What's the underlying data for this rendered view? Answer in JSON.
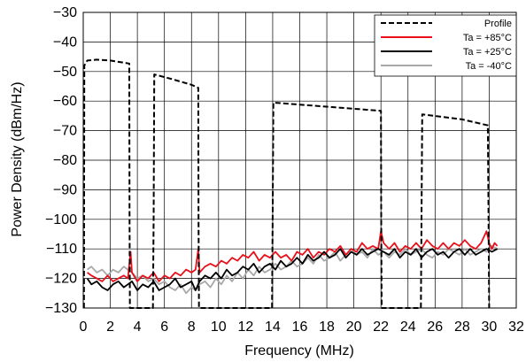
{
  "chart_data": {
    "type": "line",
    "title": "",
    "xlabel": "Frequency (MHz)",
    "ylabel": "Power Density (dBm/Hz)",
    "xlim": [
      0,
      32
    ],
    "ylim": [
      -130,
      -30
    ],
    "x_ticks": [
      0,
      2,
      4,
      6,
      8,
      10,
      12,
      14,
      16,
      18,
      20,
      22,
      24,
      26,
      28,
      30,
      32
    ],
    "y_ticks": [
      -30,
      -40,
      -50,
      -60,
      -70,
      -80,
      -90,
      -100,
      -110,
      -120,
      -130
    ],
    "x_tick_labels": [
      "0",
      "2",
      "4",
      "6",
      "8",
      "10",
      "12",
      "14",
      "16",
      "18",
      "20",
      "22",
      "24",
      "26",
      "28",
      "30",
      "32"
    ],
    "y_tick_labels": [
      "−30",
      "−40",
      "−50",
      "−60",
      "−70",
      "−80",
      "−90",
      "−100",
      "−110",
      "−120",
      "−130"
    ],
    "grid": true,
    "legend_position": "top-right",
    "legend": [
      {
        "label": "Profile",
        "color": "#000000",
        "dash": true
      },
      {
        "label": "Ta = +85°C",
        "color": "#e8111b",
        "dash": false
      },
      {
        "label": "Ta = +25°C",
        "color": "#000000",
        "dash": false
      },
      {
        "label": "Ta = -40°C",
        "color": "#a8a8a8",
        "dash": false
      }
    ],
    "series": [
      {
        "name": "Profile",
        "color": "#000000",
        "style": "dashed",
        "x": [
          0.05,
          0.08,
          0.3,
          1.0,
          2.0,
          3.0,
          3.4,
          3.42,
          3.45,
          5.15,
          5.2,
          5.25,
          6.5,
          8.0,
          8.5,
          8.52,
          8.55,
          13.95,
          14.0,
          14.05,
          16.0,
          20.0,
          22.0,
          22.02,
          22.05,
          24.95,
          25.0,
          25.05,
          28.0,
          29.9,
          29.95,
          30.0
        ],
        "y": [
          -130,
          -48,
          -46.3,
          -46,
          -46.3,
          -47,
          -47.3,
          -100,
          -130,
          -130,
          -100,
          -51,
          -52.5,
          -54.5,
          -55.5,
          -100,
          -130,
          -130,
          -100,
          -60.5,
          -61.2,
          -62.6,
          -63.3,
          -100,
          -130,
          -130,
          -100,
          -64.5,
          -66.2,
          -68.2,
          -100,
          -130
        ]
      },
      {
        "name": "Ta = +85°C",
        "color": "#e8111b",
        "style": "solid",
        "x": [
          0.3,
          0.6,
          1.0,
          1.4,
          1.8,
          2.2,
          2.6,
          3.0,
          3.3,
          3.5,
          3.6,
          4.0,
          4.4,
          4.8,
          5.2,
          5.6,
          6.0,
          6.4,
          6.8,
          7.2,
          7.6,
          8.0,
          8.3,
          8.5,
          8.6,
          9.0,
          9.4,
          9.8,
          10.2,
          10.6,
          11.0,
          11.4,
          11.8,
          12.2,
          12.6,
          13.0,
          13.4,
          13.8,
          14.2,
          14.6,
          15.0,
          15.4,
          15.8,
          16.2,
          16.6,
          17.0,
          17.4,
          17.8,
          18.2,
          18.6,
          19.0,
          19.4,
          19.8,
          20.2,
          20.6,
          21.0,
          21.4,
          21.8,
          22.0,
          22.2,
          22.6,
          23.0,
          23.4,
          23.8,
          24.2,
          24.6,
          25.0,
          25.4,
          25.8,
          26.2,
          26.6,
          27.0,
          27.4,
          27.8,
          28.2,
          28.6,
          29.0,
          29.4,
          29.8,
          30.0,
          30.2,
          30.4,
          30.6
        ],
        "y": [
          -118,
          -119,
          -120,
          -121,
          -119,
          -121,
          -120,
          -119,
          -120,
          -111,
          -118,
          -121,
          -119,
          -120,
          -118,
          -121,
          -119,
          -120,
          -118,
          -119,
          -117,
          -118,
          -117,
          -110,
          -118,
          -116,
          -115,
          -116,
          -114,
          -115,
          -113,
          -114,
          -112,
          -113,
          -111,
          -114,
          -112,
          -113,
          -111,
          -113,
          -112,
          -114,
          -111,
          -112,
          -110,
          -113,
          -111,
          -112,
          -110,
          -111,
          -109,
          -112,
          -110,
          -111,
          -108,
          -110,
          -109,
          -110,
          -104,
          -108,
          -110,
          -108,
          -111,
          -109,
          -110,
          -108,
          -110,
          -107,
          -109,
          -110,
          -108,
          -110,
          -108,
          -109,
          -107,
          -109,
          -110,
          -108,
          -104,
          -108,
          -110,
          -108,
          -109
        ]
      },
      {
        "name": "Ta = +25°C",
        "color": "#000000",
        "style": "solid",
        "x": [
          0.3,
          0.6,
          1.0,
          1.4,
          1.8,
          2.2,
          2.6,
          3.0,
          3.3,
          3.6,
          4.0,
          4.4,
          4.8,
          5.2,
          5.6,
          6.0,
          6.4,
          6.8,
          7.2,
          7.6,
          8.0,
          8.3,
          8.6,
          9.0,
          9.4,
          9.8,
          10.2,
          10.6,
          11.0,
          11.4,
          11.8,
          12.2,
          12.6,
          13.0,
          13.4,
          13.8,
          14.2,
          14.6,
          15.0,
          15.4,
          15.8,
          16.2,
          16.6,
          17.0,
          17.4,
          17.8,
          18.2,
          18.6,
          19.0,
          19.4,
          19.8,
          20.2,
          20.6,
          21.0,
          21.4,
          21.8,
          22.2,
          22.6,
          23.0,
          23.4,
          23.8,
          24.2,
          24.6,
          25.0,
          25.4,
          25.8,
          26.2,
          26.6,
          27.0,
          27.4,
          27.8,
          28.2,
          28.6,
          29.0,
          29.4,
          29.8,
          30.2,
          30.6
        ],
        "y": [
          -120,
          -122,
          -121,
          -123,
          -124,
          -122,
          -121,
          -123,
          -122,
          -121,
          -124,
          -122,
          -123,
          -121,
          -124,
          -123,
          -122,
          -120,
          -123,
          -122,
          -121,
          -124,
          -121,
          -119,
          -120,
          -118,
          -120,
          -117,
          -119,
          -118,
          -116,
          -117,
          -115,
          -118,
          -116,
          -115,
          -117,
          -114,
          -116,
          -115,
          -113,
          -115,
          -112,
          -114,
          -113,
          -111,
          -113,
          -112,
          -110,
          -113,
          -111,
          -112,
          -110,
          -112,
          -111,
          -110,
          -111,
          -112,
          -110,
          -113,
          -111,
          -112,
          -110,
          -113,
          -111,
          -110,
          -112,
          -111,
          -113,
          -111,
          -110,
          -112,
          -110,
          -112,
          -111,
          -110,
          -111,
          -110
        ]
      },
      {
        "name": "Ta = -40°C",
        "color": "#a8a8a8",
        "style": "solid",
        "x": [
          0.3,
          0.6,
          1.0,
          1.4,
          1.8,
          2.2,
          2.6,
          3.0,
          3.3,
          3.6,
          4.0,
          4.4,
          4.8,
          5.2,
          5.6,
          6.0,
          6.4,
          6.8,
          7.2,
          7.6,
          8.0,
          8.3,
          8.6,
          9.0,
          9.4,
          9.8,
          10.2,
          10.6,
          11.0,
          11.4,
          11.8,
          12.2,
          12.6,
          13.0,
          13.4,
          13.8,
          14.2,
          14.6,
          15.0,
          15.4,
          15.8,
          16.2,
          16.6,
          17.0,
          17.4,
          17.8,
          18.2,
          18.6,
          19.0,
          19.4,
          19.8,
          20.2,
          20.6,
          21.0,
          21.4,
          21.8,
          22.2,
          22.6,
          23.0,
          23.4,
          23.8,
          24.2,
          24.6,
          25.0,
          25.4,
          25.8,
          26.2,
          26.6,
          27.0,
          27.4,
          27.8,
          28.2,
          28.6,
          29.0,
          29.4,
          29.8,
          30.2,
          30.6
        ],
        "y": [
          -117,
          -116,
          -118,
          -117,
          -119,
          -117,
          -118,
          -116,
          -117,
          -118,
          -120,
          -119,
          -121,
          -120,
          -122,
          -121,
          -123,
          -124,
          -122,
          -125,
          -123,
          -124,
          -122,
          -121,
          -123,
          -120,
          -122,
          -119,
          -121,
          -118,
          -120,
          -117,
          -119,
          -116,
          -118,
          -117,
          -115,
          -117,
          -116,
          -114,
          -116,
          -115,
          -113,
          -115,
          -112,
          -114,
          -113,
          -111,
          -114,
          -112,
          -110,
          -112,
          -111,
          -113,
          -110,
          -112,
          -111,
          -113,
          -111,
          -112,
          -110,
          -112,
          -111,
          -110,
          -112,
          -113,
          -111,
          -112,
          -110,
          -111,
          -112,
          -110,
          -112,
          -111,
          -110,
          -111,
          -109,
          -110
        ]
      }
    ]
  }
}
